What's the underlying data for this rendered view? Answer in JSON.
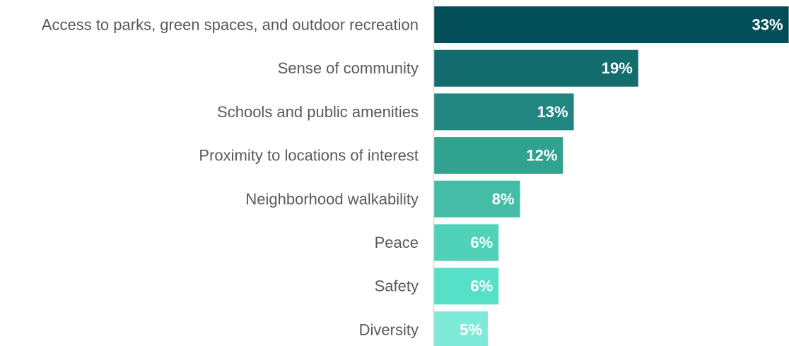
{
  "chart_data": {
    "type": "bar",
    "orientation": "horizontal",
    "categories": [
      "Access to parks, green spaces, and outdoor recreation",
      "Sense of community",
      "Schools and public amenities",
      "Proximity to locations of interest",
      "Neighborhood walkability",
      "Peace",
      "Safety",
      "Diversity"
    ],
    "values": [
      33,
      19,
      13,
      12,
      8,
      6,
      6,
      5
    ],
    "value_labels": [
      "33%",
      "19%",
      "13%",
      "12%",
      "8%",
      "6%",
      "6%",
      "5%"
    ],
    "colors": [
      "#034f59",
      "#136d6e",
      "#21867f",
      "#31a190",
      "#45bca6",
      "#4fd2b8",
      "#56e0c8",
      "#80ead8"
    ],
    "axis_color": "#d9d9d9",
    "grid": false,
    "legend": "none"
  }
}
